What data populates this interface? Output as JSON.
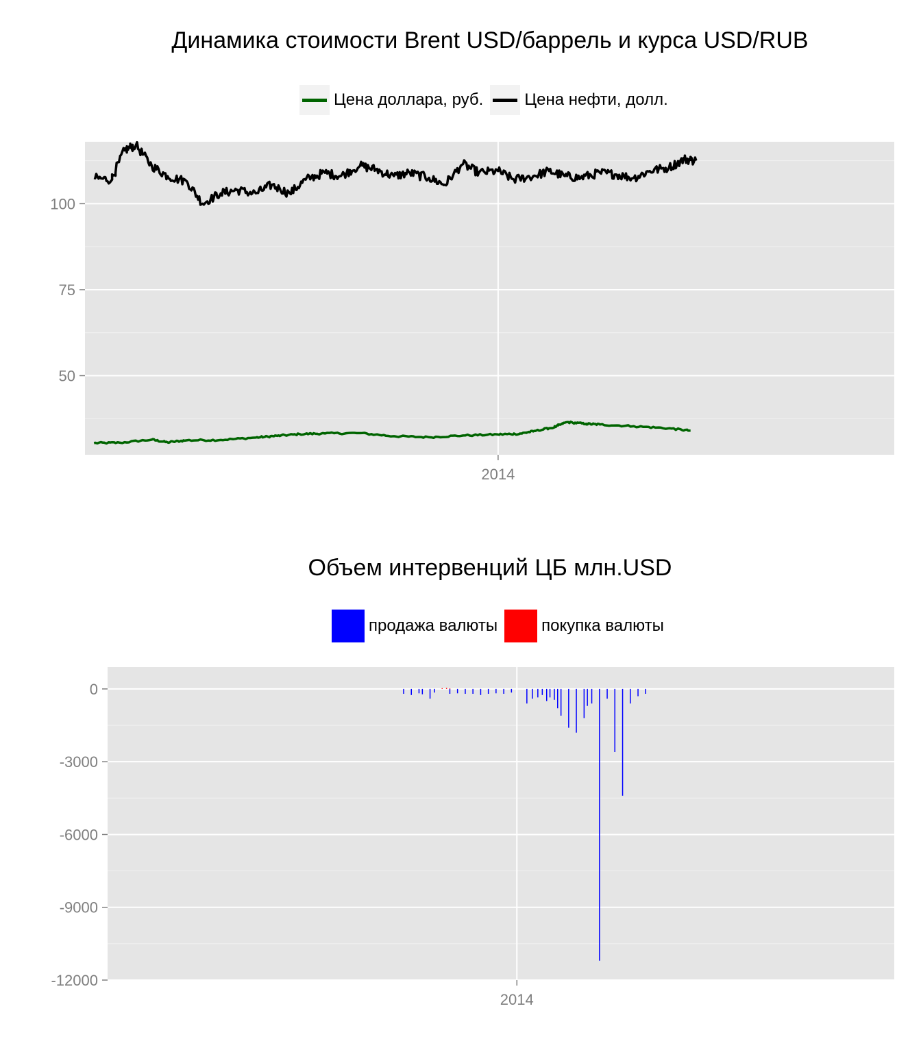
{
  "chart_data": [
    {
      "type": "line",
      "title": "Динамика стоимости Brent USD/баррель и курса USD/RUB",
      "xlabel": "",
      "ylabel": "",
      "x_range": [
        "2013-01-01",
        "2014-12-17"
      ],
      "ylim": [
        27,
        118
      ],
      "y_ticks": [
        50,
        75,
        100
      ],
      "x_ticks": [
        {
          "date": "2014-01-01",
          "label": "2014"
        }
      ],
      "grid": true,
      "legend_position": "top",
      "series": [
        {
          "name": "Цена доллара, руб.",
          "color": "#006400",
          "x": [
            "2013-01-09",
            "2013-02-01",
            "2013-03-01",
            "2013-03-15",
            "2013-04-01",
            "2013-05-01",
            "2013-06-01",
            "2013-06-20",
            "2013-07-10",
            "2013-08-01",
            "2013-09-01",
            "2013-10-01",
            "2013-11-01",
            "2013-12-01",
            "2014-01-01",
            "2014-01-20",
            "2014-02-01",
            "2014-02-20",
            "2014-03-03",
            "2014-03-20",
            "2014-04-01",
            "2014-05-01",
            "2014-06-01",
            "2014-06-20"
          ],
          "values": [
            30.4,
            30.5,
            31.4,
            30.6,
            31.2,
            31.3,
            32.0,
            32.5,
            33.0,
            33.2,
            33.3,
            32.4,
            32.1,
            32.6,
            32.9,
            33.1,
            33.8,
            35.0,
            36.5,
            36.0,
            35.8,
            35.3,
            34.7,
            34.0
          ]
        },
        {
          "name": "Цена нефти, долл.",
          "color": "#000000",
          "x": [
            "2013-01-09",
            "2013-01-25",
            "2013-02-05",
            "2013-02-15",
            "2013-03-01",
            "2013-03-15",
            "2013-04-01",
            "2013-04-15",
            "2013-05-01",
            "2013-05-15",
            "2013-06-01",
            "2013-06-15",
            "2013-07-01",
            "2013-07-15",
            "2013-08-01",
            "2013-08-15",
            "2013-09-01",
            "2013-09-15",
            "2013-10-01",
            "2013-10-15",
            "2013-11-01",
            "2013-11-15",
            "2013-12-01",
            "2013-12-15",
            "2014-01-01",
            "2014-01-15",
            "2014-02-01",
            "2014-02-15",
            "2014-03-01",
            "2014-03-15",
            "2014-04-01",
            "2014-04-15",
            "2014-05-01",
            "2014-05-15",
            "2014-06-01",
            "2014-06-15",
            "2014-06-25"
          ],
          "values": [
            107.5,
            107.0,
            115.5,
            117.0,
            111.0,
            108.0,
            106.5,
            100.0,
            103.0,
            104.0,
            103.0,
            105.5,
            103.0,
            107.0,
            109.0,
            108.0,
            111.0,
            110.0,
            108.0,
            109.0,
            107.5,
            105.5,
            111.5,
            109.0,
            109.5,
            107.0,
            108.0,
            109.5,
            108.0,
            107.5,
            109.0,
            108.5,
            107.5,
            109.5,
            110.5,
            113.0,
            112.5
          ]
        }
      ]
    },
    {
      "type": "bar",
      "title": "Объем интервенций ЦБ млн.USD",
      "xlabel": "",
      "ylabel": "",
      "x_range": [
        "2012-12-25",
        "2014-12-10"
      ],
      "ylim": [
        -12000,
        900
      ],
      "y_ticks": [
        0,
        -3000,
        -6000,
        -9000,
        -12000
      ],
      "y_tick_labels": [
        "0",
        "-3000",
        "-6000",
        "-9000",
        "-12000"
      ],
      "x_ticks": [
        {
          "date": "2014-01-01",
          "label": "2014"
        }
      ],
      "grid": true,
      "legend_position": "top",
      "legend": [
        {
          "name": "продажа валюты",
          "color": "#0000ff"
        },
        {
          "name": "покупка валюты",
          "color": "#ff0000"
        }
      ],
      "series": [
        {
          "name": "продажа валюты",
          "color": "#0000ff",
          "x": [
            "2013-09-20",
            "2013-09-27",
            "2013-10-04",
            "2013-10-07",
            "2013-10-14",
            "2013-10-18",
            "2013-11-01",
            "2013-11-08",
            "2013-11-15",
            "2013-11-22",
            "2013-11-29",
            "2013-12-06",
            "2013-12-13",
            "2013-12-20",
            "2013-12-27",
            "2014-01-10",
            "2014-01-15",
            "2014-01-20",
            "2014-01-24",
            "2014-01-28",
            "2014-01-31",
            "2014-02-04",
            "2014-02-07",
            "2014-02-10",
            "2014-02-17",
            "2014-02-24",
            "2014-03-03",
            "2014-03-06",
            "2014-03-10",
            "2014-03-17",
            "2014-03-24",
            "2014-03-31",
            "2014-04-07",
            "2014-04-14",
            "2014-04-21",
            "2014-04-28"
          ],
          "values": [
            -200,
            -250,
            -180,
            -220,
            -400,
            -150,
            -200,
            -180,
            -200,
            -200,
            -250,
            -200,
            -180,
            -200,
            -150,
            -600,
            -400,
            -350,
            -250,
            -500,
            -350,
            -450,
            -800,
            -1100,
            -1600,
            -1800,
            -1200,
            -700,
            -600,
            -11200,
            -400,
            -2600,
            -4400,
            -600,
            -300,
            -200
          ]
        },
        {
          "name": "покупка валюты",
          "color": "#ff0000",
          "x": [
            "2013-10-25",
            "2013-10-29",
            "2013-11-01"
          ],
          "values": [
            30,
            40,
            20
          ]
        }
      ]
    }
  ]
}
